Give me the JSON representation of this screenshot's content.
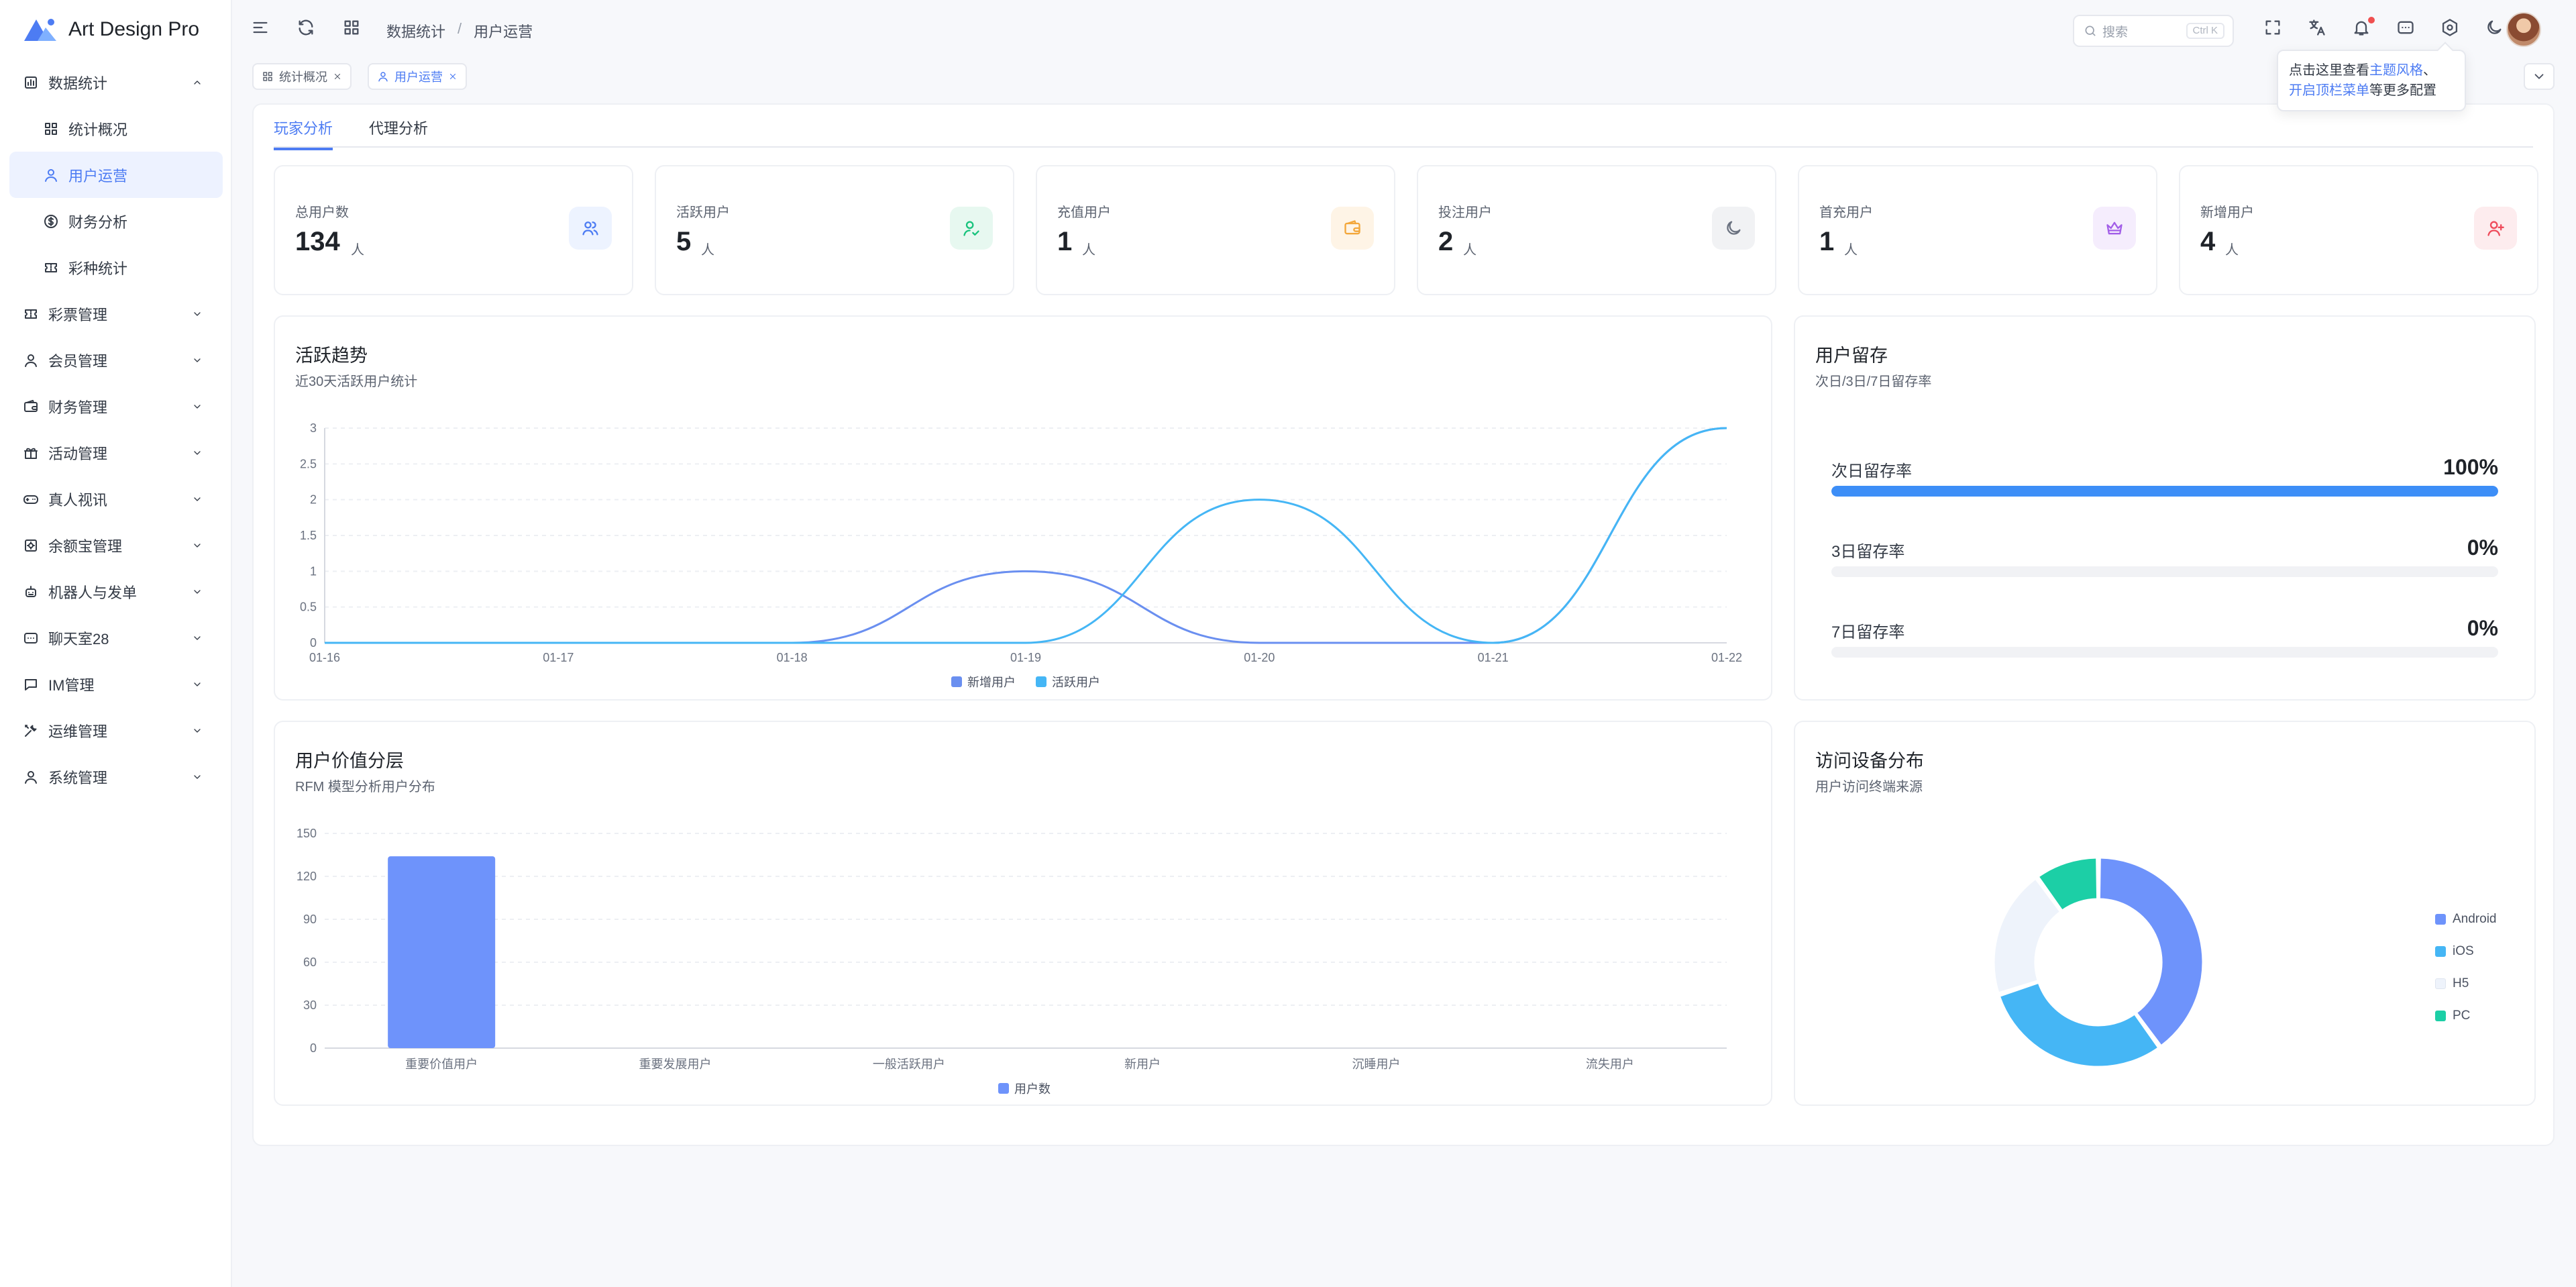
{
  "app": {
    "title": "Art Design Pro"
  },
  "sidebar": {
    "items": [
      {
        "label": "数据统计",
        "icon": "chart-icon",
        "expanded": true,
        "children": [
          {
            "label": "统计概况",
            "icon": "grid-icon"
          },
          {
            "label": "用户运营",
            "icon": "user-icon",
            "active": true
          },
          {
            "label": "财务分析",
            "icon": "dollar-icon"
          },
          {
            "label": "彩种统计",
            "icon": "ticket-icon"
          }
        ]
      },
      {
        "label": "彩票管理",
        "icon": "ticket-icon"
      },
      {
        "label": "会员管理",
        "icon": "user-icon"
      },
      {
        "label": "财务管理",
        "icon": "wallet-icon"
      },
      {
        "label": "活动管理",
        "icon": "gift-icon"
      },
      {
        "label": "真人视讯",
        "icon": "gamepad-icon"
      },
      {
        "label": "余额宝管理",
        "icon": "vault-icon"
      },
      {
        "label": "机器人与发单",
        "icon": "robot-icon"
      },
      {
        "label": "聊天室28",
        "icon": "chat-icon"
      },
      {
        "label": "IM管理",
        "icon": "message-icon"
      },
      {
        "label": "运维管理",
        "icon": "tools-icon"
      },
      {
        "label": "系统管理",
        "icon": "user-icon"
      }
    ]
  },
  "header": {
    "breadcrumb": [
      "数据统计",
      "用户运营"
    ],
    "breadcrumb_sep": "/",
    "search_placeholder": "搜索",
    "search_shortcut": "Ctrl K"
  },
  "page_tabs": [
    {
      "label": "统计概况",
      "icon": "grid-icon"
    },
    {
      "label": "用户运营",
      "icon": "user-icon",
      "active": true
    }
  ],
  "tooltip": {
    "line1_prefix": "点击这里查看",
    "line1_link": "主题风格",
    "line1_suffix": "、",
    "line2_link": "开启顶栏菜单",
    "line2_suffix": "等更多配置"
  },
  "subtabs": [
    {
      "label": "玩家分析",
      "active": true
    },
    {
      "label": "代理分析"
    }
  ],
  "stats": [
    {
      "label": "总用户数",
      "value": "134",
      "unit": "人",
      "icon": "users-icon",
      "color": "#4d7cf3",
      "bg": "#edf3ff"
    },
    {
      "label": "活跃用户",
      "value": "5",
      "unit": "人",
      "icon": "user-check-icon",
      "color": "#19c37d",
      "bg": "#e7f8f0"
    },
    {
      "label": "充值用户",
      "value": "1",
      "unit": "人",
      "icon": "wallet-icon",
      "color": "#f3a73b",
      "bg": "#fef4e6"
    },
    {
      "label": "投注用户",
      "value": "2",
      "unit": "人",
      "icon": "moon-icon",
      "color": "#6b7280",
      "bg": "#f1f2f4"
    },
    {
      "label": "首充用户",
      "value": "1",
      "unit": "人",
      "icon": "crown-icon",
      "color": "#a25ee8",
      "bg": "#f5edfd"
    },
    {
      "label": "新增用户",
      "value": "4",
      "unit": "人",
      "icon": "user-plus-icon",
      "color": "#ef4b5b",
      "bg": "#fdecee"
    }
  ],
  "active_trend": {
    "title": "活跃趋势",
    "subtitle": "近30天活跃用户统计"
  },
  "retention": {
    "title": "用户留存",
    "subtitle": "次日/3日/7日留存率",
    "rows": [
      {
        "label": "次日留存率",
        "value": "100%",
        "fraction": 1.0
      },
      {
        "label": "3日留存率",
        "value": "0%",
        "fraction": 0.0
      },
      {
        "label": "7日留存率",
        "value": "0%",
        "fraction": 0.0
      }
    ]
  },
  "value_tier": {
    "title": "用户价值分层",
    "subtitle": "RFM 模型分析用户分布"
  },
  "device": {
    "title": "访问设备分布",
    "subtitle": "用户访问终端来源"
  },
  "chart_data": [
    {
      "type": "line",
      "x": [
        "01-16",
        "01-17",
        "01-18",
        "01-19",
        "01-20",
        "01-21",
        "01-22"
      ],
      "series": [
        {
          "name": "新增用户",
          "values": [
            0,
            0,
            0,
            1,
            0,
            0,
            3
          ],
          "color": "#6a8ff0"
        },
        {
          "name": "活跃用户",
          "values": [
            0,
            0,
            0,
            0,
            2,
            0,
            3
          ],
          "color": "#45b6f5"
        }
      ],
      "ylim": [
        0,
        3
      ],
      "yticks": [
        "0",
        "0.5",
        "1",
        "1.5",
        "2",
        "2.5",
        "3"
      ],
      "legend": "bottom",
      "smooth": true
    },
    {
      "type": "bar",
      "categories": [
        "重要价值用户",
        "重要发展用户",
        "一般活跃用户",
        "新用户",
        "沉睡用户",
        "流失用户"
      ],
      "series": [
        {
          "name": "用户数",
          "values": [
            134,
            0,
            0,
            0,
            0,
            0
          ],
          "color": "#6e93fb"
        }
      ],
      "ylim": [
        0,
        150
      ],
      "yticks": [
        "0",
        "30",
        "60",
        "90",
        "120",
        "150"
      ],
      "legend": "bottom"
    },
    {
      "type": "pie",
      "donut": true,
      "labels": [
        "Android",
        "iOS",
        "H5",
        "PC"
      ],
      "values": [
        40,
        30,
        20,
        10
      ],
      "colors": [
        "#6e93fb",
        "#45b6f5",
        "#eef3fb",
        "#1ccfa6"
      ],
      "legend": "right"
    }
  ]
}
